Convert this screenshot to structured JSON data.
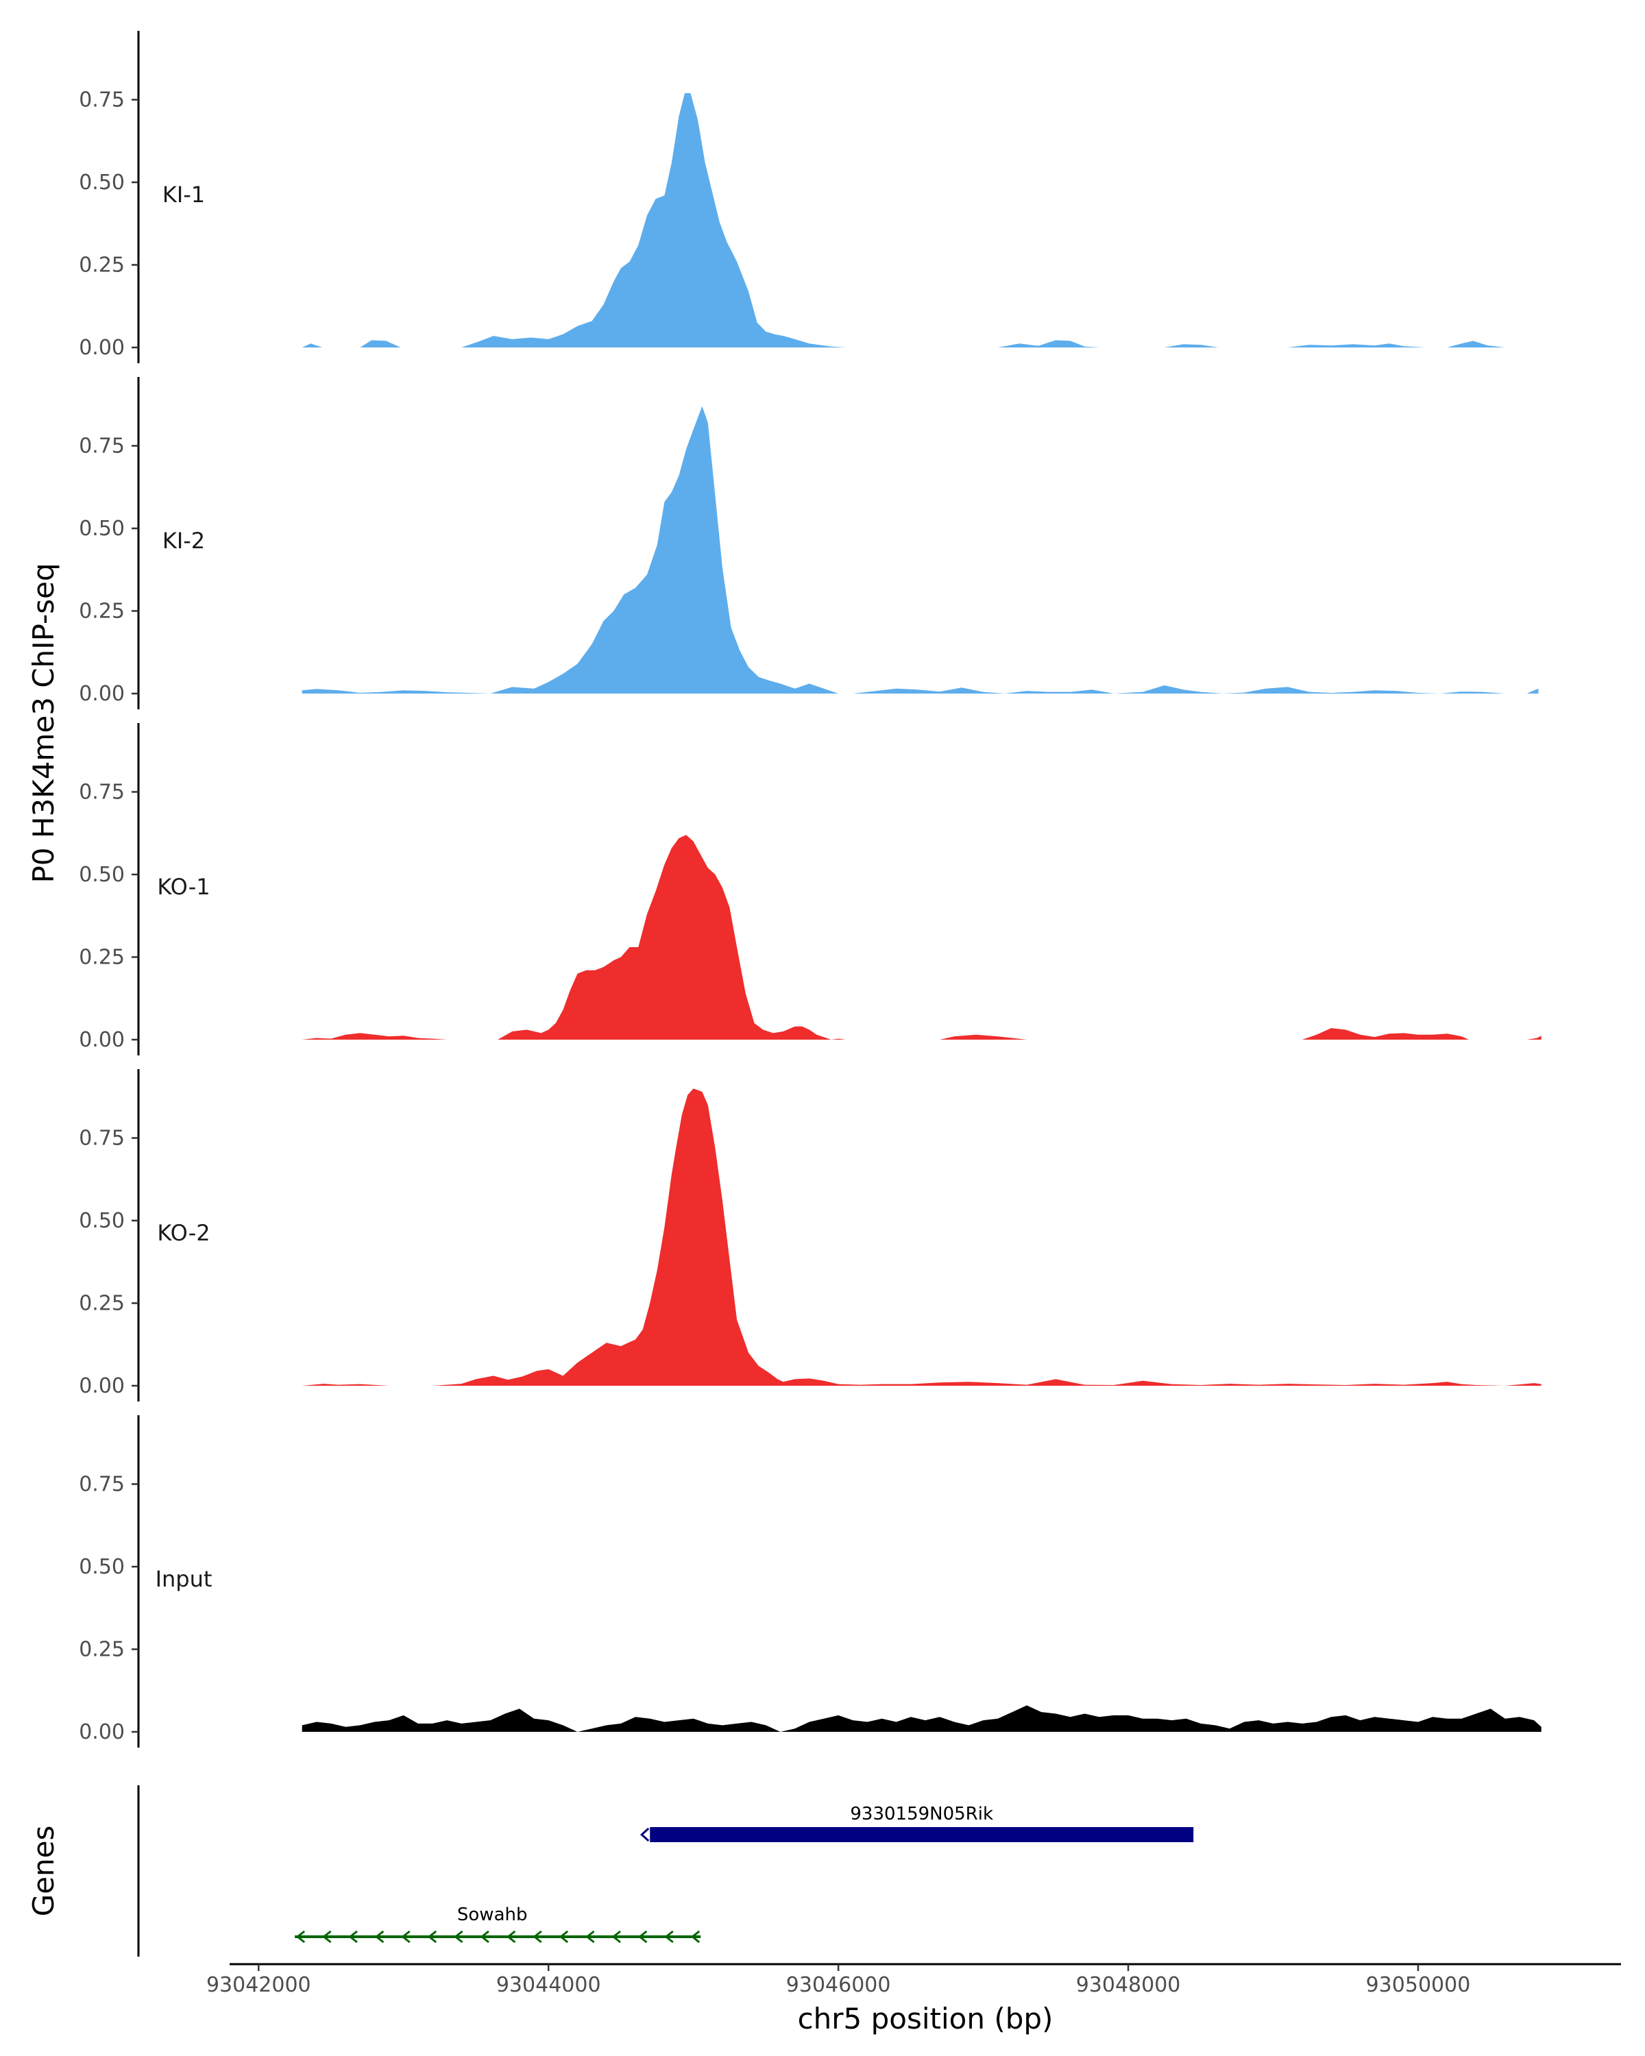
{
  "chart_data": {
    "type": "area",
    "ylabel": "P0 H3K4me3 ChIP-seq",
    "xlabel": "chr5 position (bp)",
    "xlim": [
      93041800,
      93051400
    ],
    "ylim": [
      0,
      0.95
    ],
    "x_ticks": [
      93042000,
      93044000,
      93046000,
      93048000,
      93050000
    ],
    "x_tick_labels": [
      "93042000",
      "93044000",
      "93046000",
      "93048000",
      "93050000"
    ],
    "y_ticks": [
      0,
      0.25,
      0.5,
      0.75
    ],
    "y_tick_labels": [
      "0.00",
      "0.25",
      "0.50",
      "0.75"
    ],
    "gene_track_label": "Genes",
    "series": [
      {
        "name": "KI-1",
        "color": "#5DADEC",
        "x": [
          93042300,
          93042360,
          93042440,
          93042550,
          93042700,
          93042780,
          93042880,
          93042980,
          93043400,
          93043520,
          93043620,
          93043750,
          93043880,
          93044000,
          93044100,
          93044200,
          93044300,
          93044380,
          93044450,
          93044500,
          93044560,
          93044620,
          93044680,
          93044740,
          93044800,
          93044850,
          93044900,
          93044940,
          93044980,
          93045030,
          93045080,
          93045130,
          93045180,
          93045230,
          93045300,
          93045380,
          93045440,
          93045500,
          93045560,
          93045620,
          93045700,
          93045800,
          93045950,
          93046050,
          93047100,
          93047250,
          93047380,
          93047500,
          93047600,
          93047700,
          93047800,
          93048250,
          93048380,
          93048500,
          93048620,
          93049100,
          93049250,
          93049400,
          93049550,
          93049700,
          93049800,
          93049900,
          93050050,
          93050200,
          93050300,
          93050380,
          93050480,
          93050600
        ],
        "values": [
          0,
          0.012,
          0,
          0,
          0,
          0.022,
          0.02,
          0,
          0,
          0.018,
          0.035,
          0.025,
          0.03,
          0.025,
          0.04,
          0.065,
          0.08,
          0.13,
          0.2,
          0.24,
          0.26,
          0.31,
          0.4,
          0.45,
          0.46,
          0.56,
          0.7,
          0.77,
          0.77,
          0.69,
          0.56,
          0.47,
          0.38,
          0.32,
          0.26,
          0.17,
          0.075,
          0.048,
          0.04,
          0.035,
          0.025,
          0.012,
          0.003,
          0,
          0,
          0.012,
          0.005,
          0.022,
          0.02,
          0.003,
          0,
          0,
          0.01,
          0.008,
          0,
          0,
          0.008,
          0.006,
          0.01,
          0.006,
          0.012,
          0.004,
          0,
          0,
          0.012,
          0.02,
          0.006,
          0
        ]
      },
      {
        "name": "KI-2",
        "color": "#5DADEC",
        "x": [
          93042300,
          93042400,
          93042550,
          93042700,
          93042850,
          93043000,
          93043150,
          93043300,
          93043450,
          93043600,
          93043750,
          93043900,
          93044000,
          93044100,
          93044200,
          93044300,
          93044380,
          93044450,
          93044520,
          93044600,
          93044680,
          93044750,
          93044800,
          93044850,
          93044900,
          93044950,
          93045000,
          93045060,
          93045100,
          93045150,
          93045200,
          93045260,
          93045320,
          93045380,
          93045450,
          93045520,
          93045600,
          93045700,
          93045800,
          93045900,
          93046000,
          93046100,
          93046200,
          93046400,
          93046550,
          93046700,
          93046850,
          93047000,
          93047150,
          93047300,
          93047450,
          93047600,
          93047750,
          93047900,
          93048100,
          93048250,
          93048380,
          93048500,
          93048650,
          93048800,
          93048950,
          93049100,
          93049250,
          93049400,
          93049550,
          93049700,
          93049850,
          93050000,
          93050150,
          93050300,
          93050450,
          93050600,
          93050750,
          93050800,
          93050830
        ],
        "values": [
          0.01,
          0.014,
          0.01,
          0.002,
          0.005,
          0.01,
          0.008,
          0.004,
          0.002,
          0,
          0.02,
          0.015,
          0.035,
          0.06,
          0.09,
          0.15,
          0.22,
          0.25,
          0.3,
          0.32,
          0.36,
          0.45,
          0.58,
          0.61,
          0.66,
          0.74,
          0.8,
          0.87,
          0.82,
          0.6,
          0.38,
          0.2,
          0.13,
          0.08,
          0.05,
          0.04,
          0.03,
          0.015,
          0.03,
          0.015,
          0,
          0,
          0.005,
          0.015,
          0.012,
          0.006,
          0.018,
          0.005,
          0,
          0.008,
          0.005,
          0.005,
          0.012,
          0,
          0.005,
          0.025,
          0.012,
          0.005,
          0,
          0.003,
          0.015,
          0.02,
          0.005,
          0.002,
          0.005,
          0.01,
          0.008,
          0.002,
          0,
          0.006,
          0.005,
          0,
          0,
          0.01,
          0.015
        ]
      },
      {
        "name": "KO-1",
        "color": "#EE2D2C",
        "x": [
          93042300,
          93042400,
          93042500,
          93042600,
          93042700,
          93042800,
          93042900,
          93043000,
          93043100,
          93043200,
          93043300,
          93043650,
          93043750,
          93043850,
          93043950,
          93044000,
          93044050,
          93044100,
          93044150,
          93044200,
          93044260,
          93044320,
          93044380,
          93044450,
          93044500,
          93044560,
          93044620,
          93044680,
          93044740,
          93044800,
          93044850,
          93044900,
          93044950,
          93045000,
          93045050,
          93045100,
          93045150,
          93045200,
          93045250,
          93045300,
          93045360,
          93045420,
          93045480,
          93045550,
          93045620,
          93045700,
          93045750,
          93045800,
          93045850,
          93045950,
          93046000,
          93046050,
          93046700,
          93046800,
          93046950,
          93047100,
          93047200,
          93047300,
          93049200,
          93049300,
          93049400,
          93049500,
          93049600,
          93049700,
          93049800,
          93049900,
          93050000,
          93050100,
          93050200,
          93050300,
          93050350,
          93050750,
          93050820,
          93050850
        ],
        "values": [
          0,
          0.005,
          0.003,
          0.015,
          0.02,
          0.015,
          0.01,
          0.012,
          0.005,
          0.003,
          0,
          0,
          0.025,
          0.03,
          0.02,
          0.03,
          0.05,
          0.09,
          0.15,
          0.2,
          0.21,
          0.21,
          0.22,
          0.24,
          0.25,
          0.28,
          0.28,
          0.38,
          0.45,
          0.53,
          0.58,
          0.61,
          0.62,
          0.6,
          0.56,
          0.52,
          0.5,
          0.46,
          0.4,
          0.28,
          0.14,
          0.05,
          0.03,
          0.02,
          0.025,
          0.04,
          0.04,
          0.03,
          0.015,
          0,
          0.003,
          0,
          0,
          0.01,
          0.015,
          0.01,
          0.005,
          0,
          0,
          0.015,
          0.035,
          0.03,
          0.015,
          0.008,
          0.018,
          0.02,
          0.015,
          0.015,
          0.018,
          0.01,
          0,
          0,
          0.005,
          0.012
        ]
      },
      {
        "name": "KO-2",
        "color": "#EE2D2C",
        "x": [
          93042300,
          93042450,
          93042550,
          93042700,
          93042900,
          93043200,
          93043400,
          93043500,
          93043620,
          93043720,
          93043820,
          93043920,
          93044000,
          93044100,
          93044200,
          93044300,
          93044400,
          93044500,
          93044550,
          93044600,
          93044650,
          93044700,
          93044750,
          93044800,
          93044850,
          93044880,
          93044920,
          93044960,
          93045000,
          93045060,
          93045100,
          93045150,
          93045200,
          93045250,
          93045300,
          93045380,
          93045450,
          93045520,
          93045580,
          93045620,
          93045700,
          93045800,
          93045900,
          93046000,
          93046150,
          93046300,
          93046500,
          93046700,
          93046900,
          93047100,
          93047300,
          93047500,
          93047700,
          93047900,
          93048100,
          93048300,
          93048500,
          93048700,
          93048900,
          93049100,
          93049300,
          93049500,
          93049700,
          93049900,
          93050100,
          93050200,
          93050300,
          93050400,
          93050600,
          93050700,
          93050800,
          93050850
        ],
        "values": [
          0,
          0.006,
          0.003,
          0.005,
          0,
          0,
          0.006,
          0.02,
          0.03,
          0.018,
          0.028,
          0.045,
          0.05,
          0.03,
          0.07,
          0.1,
          0.13,
          0.12,
          0.13,
          0.14,
          0.17,
          0.25,
          0.35,
          0.48,
          0.64,
          0.72,
          0.82,
          0.88,
          0.9,
          0.89,
          0.85,
          0.72,
          0.56,
          0.38,
          0.2,
          0.1,
          0.06,
          0.04,
          0.02,
          0.012,
          0.02,
          0.022,
          0.015,
          0.005,
          0.003,
          0.005,
          0.005,
          0.01,
          0.012,
          0.008,
          0.003,
          0.02,
          0.003,
          0.002,
          0.015,
          0.005,
          0.002,
          0.006,
          0.003,
          0.006,
          0.004,
          0.002,
          0.006,
          0.003,
          0.008,
          0.012,
          0.005,
          0.002,
          0,
          0.004,
          0.008,
          0.005
        ]
      },
      {
        "name": "Input",
        "color": "#000000",
        "x": [
          93042300,
          93042400,
          93042500,
          93042600,
          93042700,
          93042800,
          93042900,
          93043000,
          93043100,
          93043200,
          93043300,
          93043400,
          93043500,
          93043600,
          93043700,
          93043800,
          93043900,
          93044000,
          93044100,
          93044200,
          93044300,
          93044400,
          93044500,
          93044600,
          93044700,
          93044800,
          93044900,
          93045000,
          93045100,
          93045200,
          93045300,
          93045400,
          93045500,
          93045600,
          93045700,
          93045800,
          93045900,
          93046000,
          93046100,
          93046200,
          93046300,
          93046400,
          93046500,
          93046600,
          93046700,
          93046800,
          93046900,
          93047000,
          93047100,
          93047200,
          93047300,
          93047400,
          93047500,
          93047600,
          93047700,
          93047800,
          93047900,
          93048000,
          93048100,
          93048200,
          93048300,
          93048400,
          93048500,
          93048600,
          93048700,
          93048800,
          93048900,
          93049000,
          93049100,
          93049200,
          93049300,
          93049400,
          93049500,
          93049600,
          93049700,
          93049800,
          93049900,
          93050000,
          93050100,
          93050200,
          93050300,
          93050400,
          93050500,
          93050600,
          93050700,
          93050800,
          93050850
        ],
        "values": [
          0.02,
          0.03,
          0.025,
          0.015,
          0.02,
          0.03,
          0.035,
          0.05,
          0.025,
          0.025,
          0.035,
          0.025,
          0.03,
          0.035,
          0.055,
          0.07,
          0.04,
          0.035,
          0.02,
          0,
          0.01,
          0.02,
          0.025,
          0.045,
          0.04,
          0.03,
          0.035,
          0.04,
          0.025,
          0.02,
          0.025,
          0.03,
          0.02,
          0,
          0.01,
          0.03,
          0.04,
          0.05,
          0.035,
          0.03,
          0.04,
          0.03,
          0.045,
          0.035,
          0.045,
          0.03,
          0.02,
          0.035,
          0.04,
          0.06,
          0.08,
          0.06,
          0.055,
          0.045,
          0.055,
          0.045,
          0.05,
          0.05,
          0.04,
          0.04,
          0.035,
          0.04,
          0.025,
          0.02,
          0.01,
          0.03,
          0.035,
          0.025,
          0.03,
          0.025,
          0.03,
          0.045,
          0.05,
          0.035,
          0.045,
          0.04,
          0.035,
          0.03,
          0.045,
          0.04,
          0.04,
          0.055,
          0.07,
          0.04,
          0.045,
          0.035,
          0.015
        ]
      }
    ],
    "genes": [
      {
        "name": "9330159N05Rik",
        "start": 93044700,
        "end": 93048450,
        "strand": "-",
        "color": "#000080",
        "row": 1
      },
      {
        "name": "Sowahb",
        "start": 93042250,
        "end": 93045050,
        "strand": "-",
        "color": "#006400",
        "row": 2
      }
    ]
  }
}
